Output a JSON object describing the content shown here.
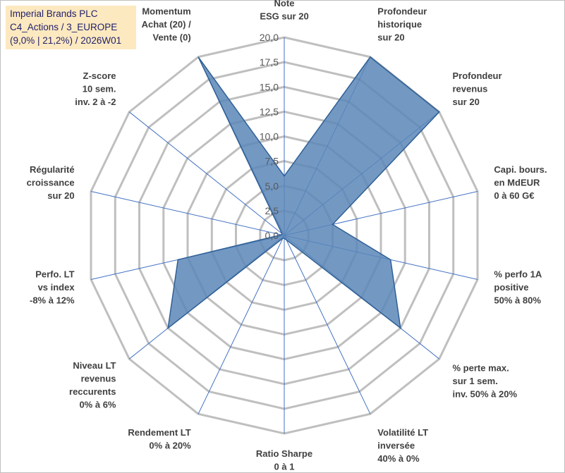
{
  "title_box": {
    "line1": "Imperial Brands PLC",
    "line2": "C4_Actions / 3_EUROPE",
    "line3": "(9,0% | 21,2%) / 2026W01",
    "background": "#fde9c0",
    "text_color": "#1f1f6b"
  },
  "chart_data": {
    "type": "radar",
    "title": "Imperial Brands PLC C4_Actions / 3_EUROPE (9,0% | 21,2%) / 2026W01",
    "axes": [
      {
        "label": [
          "Note",
          "ESG sur 20"
        ]
      },
      {
        "label": [
          "Profondeur",
          "historique",
          "sur 20"
        ]
      },
      {
        "label": [
          "Profondeur",
          "revenus",
          "sur 20"
        ]
      },
      {
        "label": [
          "Capi. bours.",
          "en MdEUR",
          "0 à 60 G€"
        ]
      },
      {
        "label": [
          "% perfo 1A",
          "positive",
          "50% à 80%"
        ]
      },
      {
        "label": [
          "% perte max.",
          "sur 1 sem.",
          "inv. 50% à 20%"
        ]
      },
      {
        "label": [
          "Volatilité LT",
          "inversée",
          "40% à 0%"
        ]
      },
      {
        "label": [
          "Ratio Sharpe",
          "0 à 1"
        ]
      },
      {
        "label": [
          "Rendement LT",
          "0% à 20%"
        ]
      },
      {
        "label": [
          "Niveau LT",
          "revenus",
          "reccurents",
          "0% à 6%"
        ]
      },
      {
        "label": [
          "Perfo. LT",
          "vs index",
          "-8% à 12%"
        ]
      },
      {
        "label": [
          "Régularité",
          "croissance",
          "sur 20"
        ]
      },
      {
        "label": [
          "Z-score",
          "10 sem.",
          "inv. 2 à -2"
        ]
      },
      {
        "label": [
          "Momentum",
          "Achat (20) /",
          "Vente (0)"
        ]
      }
    ],
    "series": [
      {
        "name": "Imperial Brands PLC",
        "values": [
          6.0,
          20.0,
          20.0,
          5.0,
          11.0,
          15.0,
          0.5,
          0.3,
          0.3,
          15.0,
          11.0,
          0.3,
          0.3,
          20.0
        ]
      }
    ],
    "rlim": [
      0,
      20
    ],
    "ticks": [
      "0,0",
      "2,5",
      "5,0",
      "7,5",
      "10,0",
      "12,5",
      "15,0",
      "17,5",
      "20,0"
    ],
    "colors": {
      "fill": "#5b87b8",
      "stroke": "#2f5f95",
      "grid": "#bfbfbf",
      "spoke": "#4472c4"
    }
  }
}
